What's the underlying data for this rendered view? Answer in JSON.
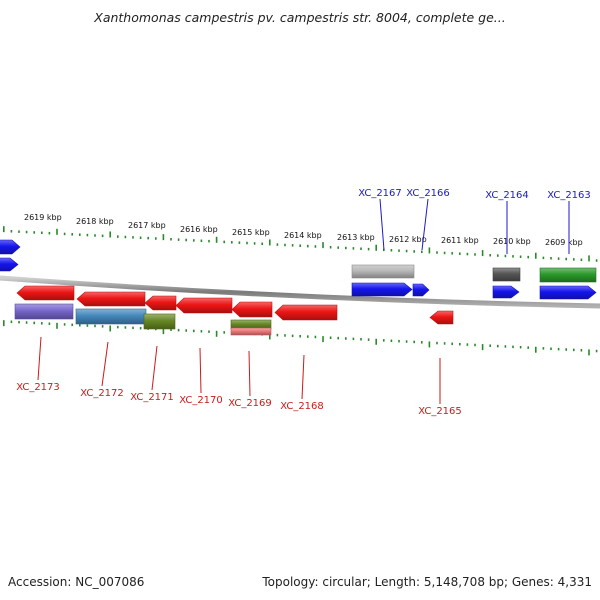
{
  "title": "Xanthomonas campestris pv. campestris str. 8004, complete ge...",
  "footer": {
    "accession": "Accession: NC_007086",
    "stats": "Topology: circular; Length: 5,148,708 bp; Genes: 4,331"
  },
  "ruler_labels": [
    "2619 kbp",
    "2618 kbp",
    "2617 kbp",
    "2616 kbp",
    "2615 kbp",
    "2614 kbp",
    "2613 kbp",
    "2612 kbp",
    "2611 kbp",
    "2610 kbp",
    "2609 kbp"
  ],
  "colors": {
    "forward_label": "#1a1acc",
    "reverse_label": "#cc1a1a",
    "tick": "#2a8a2a",
    "backbone": "#888888"
  },
  "genes_forward": [
    {
      "label": "XC_2167",
      "color": "#1515ee",
      "feature_colors": [
        "#b8b8b8"
      ]
    },
    {
      "label": "XC_2166",
      "color": "#1515ee",
      "feature_colors": []
    },
    {
      "label": "XC_2164",
      "color": "#1515ee",
      "feature_colors": [
        "#555555"
      ]
    },
    {
      "label": "XC_2163",
      "color": "#1515ee",
      "feature_colors": [
        "#2a9a2a"
      ]
    }
  ],
  "genes_reverse": [
    {
      "label": "XC_2173",
      "color": "#ee1515",
      "feature_colors": [
        "#7766cc"
      ]
    },
    {
      "label": "XC_2172",
      "color": "#ee1515",
      "feature_colors": [
        "#4488bb"
      ]
    },
    {
      "label": "XC_2171",
      "color": "#ee1515",
      "feature_colors": [
        "#668822"
      ]
    },
    {
      "label": "XC_2170",
      "color": "#ee1515",
      "feature_colors": []
    },
    {
      "label": "XC_2169",
      "color": "#ee1515",
      "feature_colors": [
        "#668822",
        "#ee7777"
      ]
    },
    {
      "label": "XC_2168",
      "color": "#ee1515",
      "feature_colors": []
    },
    {
      "label": "XC_2165",
      "color": "#ee1515",
      "feature_colors": []
    }
  ]
}
